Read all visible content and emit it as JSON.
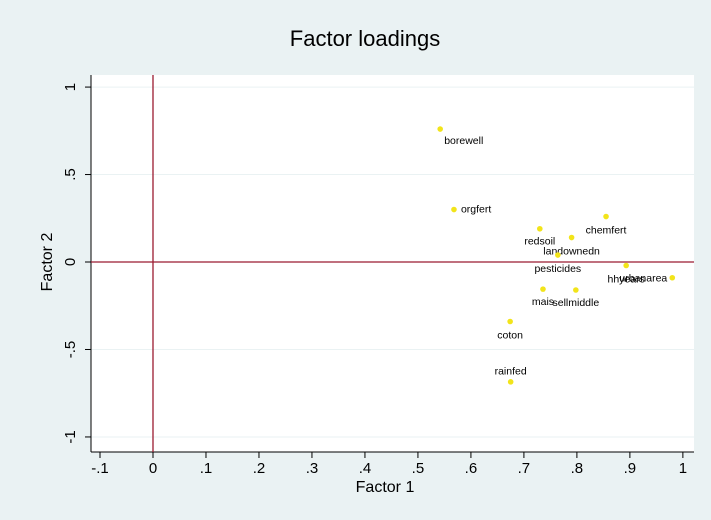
{
  "chart_data": {
    "type": "scatter",
    "title": "Factor loadings",
    "x_label": "Factor 1",
    "y_label": "Factor 2",
    "xlim": [
      -0.117,
      1.021
    ],
    "ylim": [
      -1.086,
      1.069
    ],
    "xticks": [
      {
        "value": -0.1,
        "label": "-.1"
      },
      0,
      {
        "value": 0.1,
        "label": ".1"
      },
      {
        "value": 0.2,
        "label": ".2"
      },
      {
        "value": 0.3,
        "label": ".3"
      },
      {
        "value": 0.4,
        "label": ".4"
      },
      {
        "value": 0.5,
        "label": ".5"
      },
      {
        "value": 0.6,
        "label": ".6"
      },
      {
        "value": 0.7,
        "label": ".7"
      },
      {
        "value": 0.8,
        "label": ".8"
      },
      {
        "value": 0.9,
        "label": ".9"
      },
      1
    ],
    "yticks": [
      {
        "value": -1,
        "label": "-1"
      },
      {
        "value": -0.5,
        "label": "-.5"
      },
      0,
      {
        "value": 0.5,
        "label": ".5"
      },
      1
    ],
    "grid": true,
    "reference_lines": true,
    "color": "#f2e41a",
    "label_color": "#1a476f",
    "labels": [
      "borewell",
      "orgfert",
      "redsoil",
      "landownedn",
      "chemfert",
      "pesticides",
      "hhyears",
      "urbanarea",
      "mais",
      "sellmiddle",
      "coton",
      "rainfed"
    ],
    "x": [
      0.542,
      0.568,
      0.73,
      0.79,
      0.855,
      0.764,
      0.893,
      0.98,
      0.736,
      0.798,
      0.674,
      0.675
    ],
    "values": [
      0.76,
      0.3,
      0.19,
      0.14,
      0.26,
      0.04,
      -0.02,
      -0.09,
      -0.155,
      -0.16,
      -0.34,
      -0.685
    ]
  }
}
